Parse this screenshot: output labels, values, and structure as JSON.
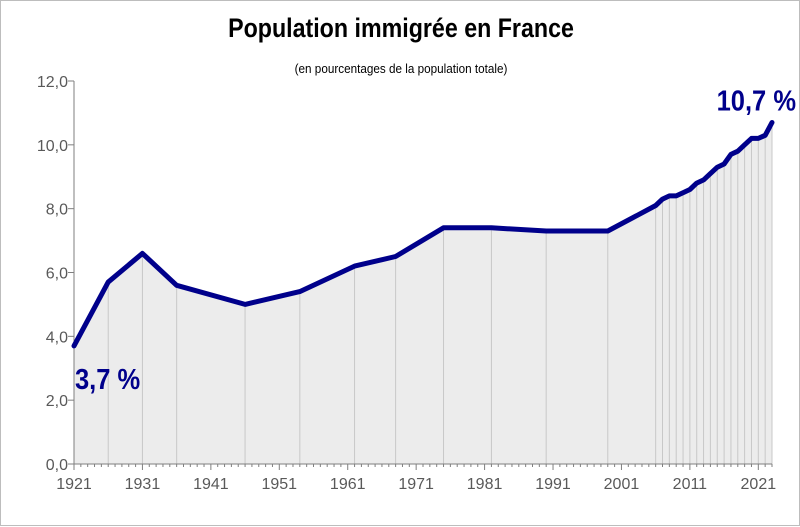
{
  "title": "Population immigrée en France",
  "subtitle": "(en pourcentages de la population totale)",
  "colors": {
    "line": "#00008b",
    "fill": "#ececec",
    "dropline": "#c8c8c8",
    "axis": "#7f7f7f",
    "tick_text": "#595959"
  },
  "chart_data": {
    "type": "area",
    "title": "Population immigrée en France",
    "subtitle": "(en pourcentages de la population totale)",
    "xlabel": "",
    "ylabel": "",
    "ylim": [
      0,
      12
    ],
    "xlim": [
      1921,
      2023
    ],
    "grid": false,
    "yticks": [
      "0,0",
      "2,0",
      "4,0",
      "6,0",
      "8,0",
      "10,0",
      "12,0"
    ],
    "xticks": [
      "1921",
      "1931",
      "1941",
      "1951",
      "1961",
      "1971",
      "1981",
      "1991",
      "2001",
      "2011",
      "2021"
    ],
    "x": [
      1921,
      1926,
      1931,
      1936,
      1946,
      1954,
      1962,
      1968,
      1975,
      1982,
      1990,
      1999,
      2006,
      2007,
      2008,
      2009,
      2010,
      2011,
      2012,
      2013,
      2014,
      2015,
      2016,
      2017,
      2018,
      2019,
      2020,
      2021,
      2022,
      2023
    ],
    "series": [
      {
        "values": [
          3.7,
          5.7,
          6.6,
          5.6,
          5.0,
          5.4,
          6.2,
          6.5,
          7.4,
          7.4,
          7.3,
          7.3,
          8.1,
          8.3,
          8.4,
          8.4,
          8.5,
          8.6,
          8.8,
          8.9,
          9.1,
          9.3,
          9.4,
          9.7,
          9.8,
          10.0,
          10.2,
          10.2,
          10.3,
          10.7
        ]
      }
    ],
    "annotations": [
      {
        "x": 1921,
        "y": 3.7,
        "text": "3,7 %"
      },
      {
        "x": 2023,
        "y": 10.7,
        "text": "10,7 %"
      }
    ]
  }
}
